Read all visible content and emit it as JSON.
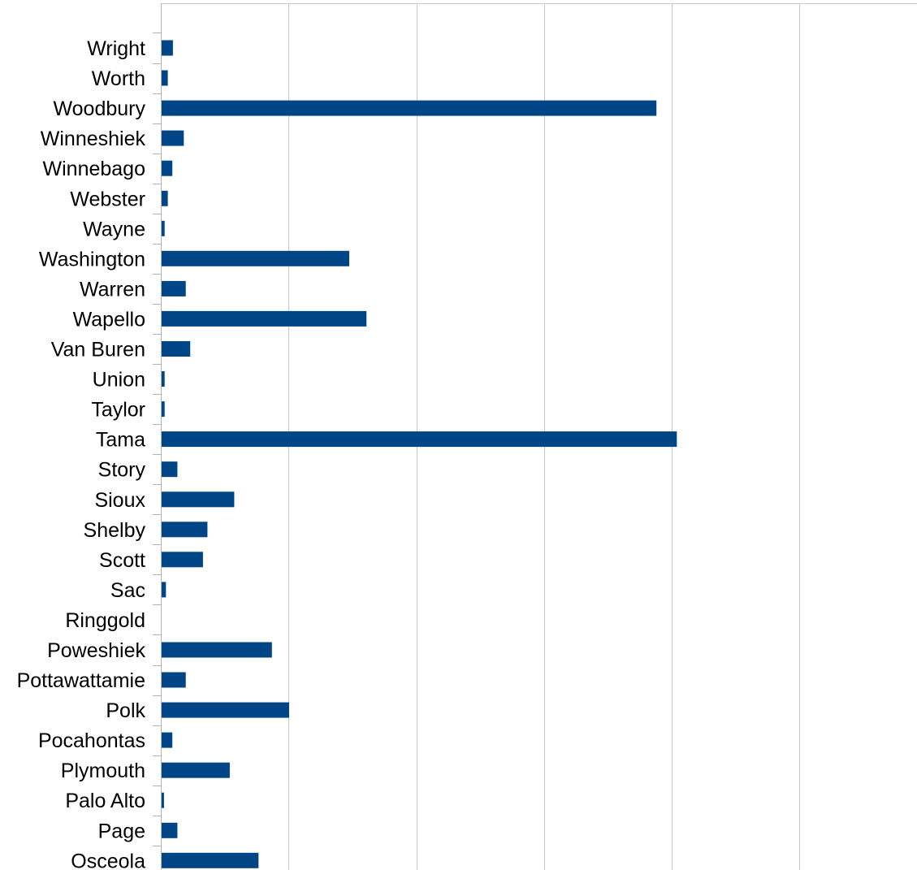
{
  "chart_data": {
    "type": "bar",
    "orientation": "horizontal",
    "title": "",
    "xlabel": "",
    "ylabel": "",
    "categories": [
      "Wright",
      "Worth",
      "Woodbury",
      "Winneshiek",
      "Winnebago",
      "Webster",
      "Wayne",
      "Washington",
      "Warren",
      "Wapello",
      "Van Buren",
      "Union",
      "Taylor",
      "Tama",
      "Story",
      "Sioux",
      "Shelby",
      "Scott",
      "Sac",
      "Ringgold",
      "Poweshiek",
      "Pottawattamie",
      "Polk",
      "Pocahontas",
      "Plymouth",
      "Palo Alto",
      "Page",
      "Osceola"
    ],
    "values": [
      1.9,
      1.1,
      77.6,
      3.6,
      1.8,
      1.1,
      0.6,
      29.5,
      3.9,
      32.2,
      4.6,
      0.6,
      0.6,
      80.8,
      2.6,
      11.5,
      7.3,
      6.6,
      0.8,
      0,
      17.4,
      3.9,
      20.1,
      1.8,
      10.8,
      0.5,
      2.6,
      15.3
    ],
    "xlim": [
      0,
      118.4
    ],
    "x_gridline_interval": 20,
    "tick_labels_visible": false,
    "grid": true,
    "legend": "none",
    "bar_color": "#004586"
  }
}
